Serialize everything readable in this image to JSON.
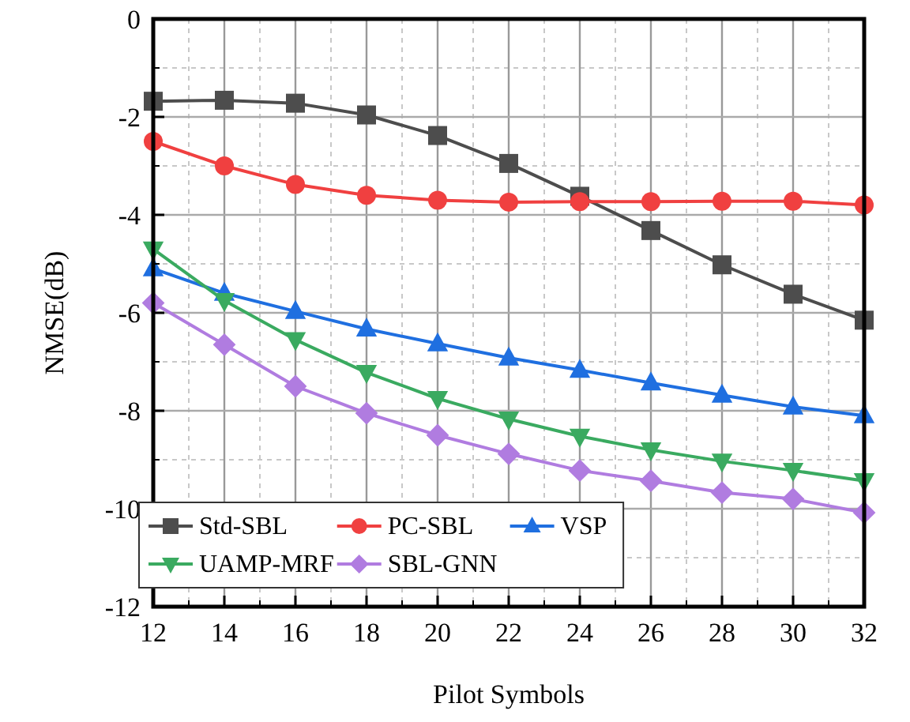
{
  "chart_data": {
    "type": "line",
    "xlabel": "Pilot Symbols",
    "ylabel": "NMSE(dB)",
    "x": [
      12,
      14,
      16,
      18,
      20,
      22,
      24,
      26,
      28,
      30,
      32
    ],
    "xlim": [
      12,
      32
    ],
    "xticks": [
      12,
      14,
      16,
      18,
      20,
      22,
      24,
      26,
      28,
      30,
      32
    ],
    "ylim": [
      -12,
      0
    ],
    "yticks": [
      -12,
      -10,
      -8,
      -6,
      -4,
      -2,
      0
    ],
    "grid": true,
    "legend": "bottom left",
    "line_style": "solid",
    "series": [
      {
        "name": "Std-SBL",
        "color": "#4d4d4d",
        "marker": "square",
        "values": [
          -1.68,
          -1.66,
          -1.72,
          -1.96,
          -2.38,
          -2.95,
          -3.62,
          -4.32,
          -5.02,
          -5.62,
          -6.15
        ]
      },
      {
        "name": "PC-SBL",
        "color": "#f04040",
        "marker": "circle",
        "values": [
          -2.5,
          -3.0,
          -3.38,
          -3.6,
          -3.7,
          -3.74,
          -3.73,
          -3.73,
          -3.72,
          -3.72,
          -3.8
        ]
      },
      {
        "name": "VSP",
        "color": "#1f6fe0",
        "marker": "triangle",
        "values": [
          -5.1,
          -5.6,
          -5.97,
          -6.33,
          -6.63,
          -6.92,
          -7.17,
          -7.43,
          -7.68,
          -7.92,
          -8.1
        ]
      },
      {
        "name": "UAMP-MRF",
        "color": "#3aaa60",
        "marker": "triangle-down",
        "values": [
          -4.7,
          -5.75,
          -6.55,
          -7.22,
          -7.75,
          -8.17,
          -8.52,
          -8.8,
          -9.03,
          -9.22,
          -9.43
        ]
      },
      {
        "name": "SBL-GNN",
        "color": "#b07ce0",
        "marker": "diamond",
        "values": [
          -5.8,
          -6.65,
          -7.5,
          -8.05,
          -8.5,
          -8.88,
          -9.22,
          -9.43,
          -9.67,
          -9.8,
          -10.08
        ]
      }
    ]
  }
}
